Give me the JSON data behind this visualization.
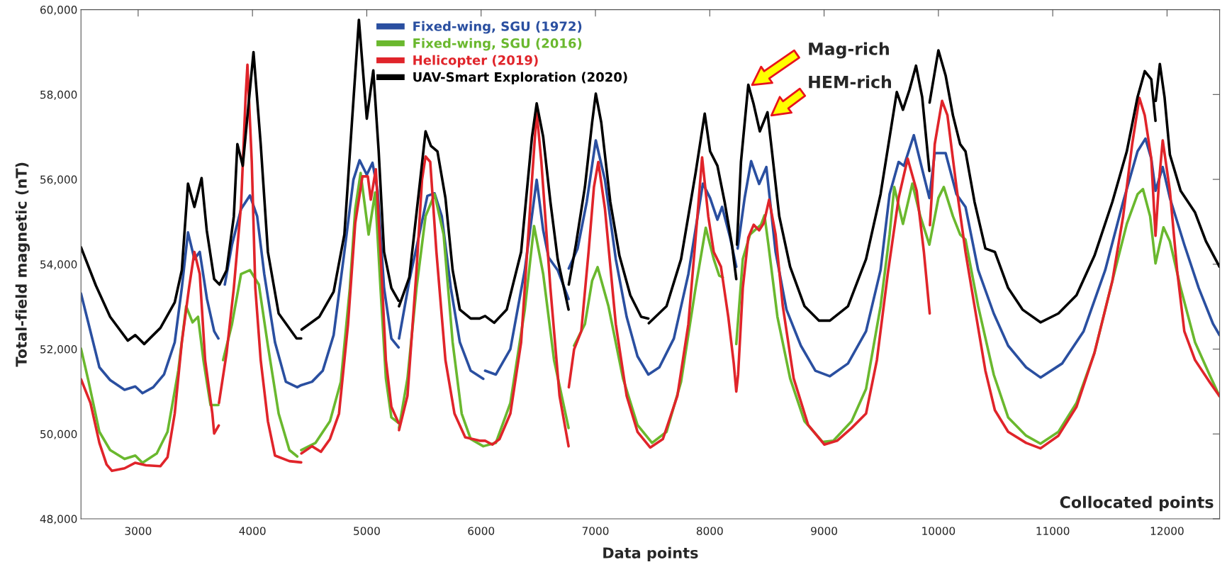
{
  "chart_data": {
    "type": "line",
    "xlabel": "Data points",
    "ylabel": "Total-field magnetic (nT)",
    "xlim": [
      2500,
      12460
    ],
    "xticks": [
      3000,
      4000,
      5000,
      6000,
      7000,
      8000,
      9000,
      10000,
      11000,
      12000
    ],
    "ylim": [
      48000,
      60000
    ],
    "yticks": [
      {
        "value": 48000,
        "label": "48,000"
      },
      {
        "value": 50000,
        "label": "50,000"
      },
      {
        "value": 52000,
        "label": "52,000"
      },
      {
        "value": 54000,
        "label": "54,000"
      },
      {
        "value": 56000,
        "label": "56,000"
      },
      {
        "value": 58000,
        "label": "58,000"
      },
      {
        "value": 60000,
        "label": "60,000"
      }
    ],
    "grid": false,
    "legend": "top",
    "marker": "none",
    "line_style": "solid",
    "annotations": [
      "Mag-rich",
      "HEM-rich",
      "Collocated points"
    ],
    "series": [
      {
        "name": "Fixed-wing, SGU (1972)",
        "color": "#2a4fa0",
        "x": [
          2500,
          2567,
          2661,
          2755,
          2881,
          2975,
          3038,
          3132,
          3226,
          3320,
          3382,
          3436,
          3492,
          3539,
          3602,
          3665,
          3702,
          3730,
          3758,
          3821,
          3900,
          3978,
          4041,
          4103,
          4197,
          4292,
          4392,
          4426,
          4521,
          4615,
          4710,
          4804,
          4883,
          4937,
          5000,
          5050,
          5095,
          5151,
          5215,
          5278,
          5280,
          5282,
          5372,
          5467,
          5530,
          5593,
          5656,
          5735,
          5814,
          5909,
          6019,
          6027,
          6035,
          6129,
          6256,
          6382,
          6486,
          6543,
          6590,
          6670,
          6765,
          6766,
          6767,
          6844,
          6924,
          7003,
          7083,
          7178,
          7273,
          7368,
          7463,
          7559,
          7686,
          7813,
          7940,
          8003,
          8067,
          8108,
          8178,
          8232,
          8238,
          8244,
          8305,
          8362,
          8432,
          8495,
          8576,
          8671,
          8797,
          8924,
          9051,
          9209,
          9367,
          9494,
          9573,
          9652,
          9699,
          9785,
          9858,
          9921,
          9968,
          10063,
          10158,
          10237,
          10348,
          10484,
          10610,
          10767,
          10893,
          11082,
          11270,
          11459,
          11616,
          11742,
          11811,
          11862,
          11899,
          11962,
          12025,
          12151,
          12277,
          12403,
          12459
        ],
        "values": [
          53310,
          52590,
          51570,
          51270,
          51040,
          51120,
          50960,
          51100,
          51400,
          52160,
          53440,
          54750,
          54120,
          54290,
          53180,
          52420,
          52250,
          null,
          53520,
          54460,
          55300,
          55620,
          55130,
          53770,
          52160,
          51230,
          51100,
          51150,
          51230,
          51490,
          52330,
          54290,
          55990,
          56450,
          56110,
          56390,
          55730,
          53440,
          52250,
          52040,
          null,
          52250,
          53610,
          54800,
          55610,
          55670,
          55130,
          53440,
          52160,
          51490,
          51300,
          null,
          51490,
          51400,
          52000,
          53860,
          55990,
          54800,
          54160,
          53860,
          53180,
          null,
          53900,
          54370,
          55470,
          56920,
          55990,
          54120,
          52760,
          51830,
          51400,
          51570,
          52250,
          53770,
          55900,
          55560,
          55050,
          55350,
          54630,
          53940,
          null,
          54370,
          55560,
          56430,
          55890,
          56290,
          54290,
          52930,
          52080,
          51490,
          51360,
          51660,
          52420,
          53860,
          55650,
          56410,
          56320,
          57040,
          56240,
          55560,
          56620,
          56620,
          55650,
          55350,
          53860,
          52840,
          52080,
          51570,
          51330,
          51660,
          52420,
          53860,
          55470,
          56660,
          56960,
          56490,
          55730,
          56290,
          55560,
          54460,
          53440,
          52590,
          52330
        ]
      },
      {
        "name": "Fixed-wing, SGU (2016)",
        "color": "#6ab82e",
        "x": [
          2500,
          2567,
          2661,
          2755,
          2881,
          2975,
          3038,
          3163,
          3257,
          3351,
          3420,
          3476,
          3524,
          3571,
          3633,
          3702,
          3720,
          3743,
          3821,
          3900,
          3978,
          4056,
          4135,
          4229,
          4323,
          4392,
          4409,
          4426,
          4552,
          4678,
          4773,
          4852,
          4899,
          4946,
          5016,
          5073,
          5120,
          5167,
          5215,
          5278,
          5280,
          5282,
          5356,
          5435,
          5514,
          5593,
          5672,
          5751,
          5830,
          5909,
          6019,
          6129,
          6256,
          6382,
          6463,
          6543,
          6638,
          6765,
          6790,
          6813,
          6908,
          6971,
          7019,
          7114,
          7241,
          7368,
          7495,
          7622,
          7749,
          7876,
          7965,
          8035,
          8083,
          8114,
          8170,
          8232,
          8289,
          8352,
          8448,
          8479,
          8513,
          8592,
          8703,
          8829,
          8987,
          9082,
          9241,
          9367,
          9494,
          9573,
          9614,
          9690,
          9772,
          9842,
          9921,
          10000,
          10047,
          10127,
          10190,
          10237,
          10348,
          10484,
          10610,
          10767,
          10893,
          11050,
          11208,
          11365,
          11522,
          11648,
          11742,
          11789,
          11852,
          11899,
          11969,
          12025,
          12119,
          12245,
          12371,
          12459
        ],
        "values": [
          52010,
          51230,
          50050,
          49620,
          49410,
          49490,
          49320,
          49540,
          50050,
          51490,
          53010,
          52630,
          52760,
          51740,
          50680,
          50680,
          null,
          51740,
          52590,
          53770,
          53860,
          53520,
          52080,
          50480,
          49620,
          49470,
          null,
          49620,
          49790,
          50300,
          51230,
          53440,
          55300,
          56150,
          54700,
          55690,
          53440,
          51310,
          50390,
          50260,
          null,
          50140,
          51310,
          53440,
          55130,
          55650,
          54700,
          52160,
          50480,
          49880,
          49710,
          49790,
          50730,
          52930,
          54900,
          53770,
          51740,
          50140,
          null,
          52080,
          52590,
          53610,
          53930,
          53010,
          51310,
          50210,
          49790,
          50050,
          51230,
          53440,
          54860,
          54120,
          53730,
          53690,
          null,
          52120,
          54120,
          54700,
          54930,
          55150,
          54460,
          52760,
          51310,
          50300,
          49810,
          49840,
          50300,
          51060,
          53010,
          54700,
          55820,
          54950,
          55900,
          55130,
          54460,
          55560,
          55820,
          55130,
          54700,
          54580,
          53010,
          51400,
          50390,
          49960,
          49770,
          50050,
          50730,
          51910,
          53610,
          54950,
          55650,
          55770,
          55130,
          54020,
          54870,
          54540,
          53440,
          52160,
          51400,
          50890
        ]
      },
      {
        "name": "Helicopter (2019)",
        "color": "#e0242a",
        "x": [
          2500,
          2583,
          2661,
          2724,
          2771,
          2881,
          2975,
          3069,
          3194,
          3257,
          3320,
          3382,
          3445,
          3492,
          3539,
          3586,
          3649,
          3665,
          3705,
          3706,
          3707,
          3774,
          3837,
          3900,
          3940,
          3956,
          3994,
          4025,
          4072,
          4135,
          4197,
          4323,
          4426,
          4427,
          4428,
          4521,
          4599,
          4678,
          4757,
          4836,
          4899,
          4962,
          5009,
          5035,
          5079,
          5120,
          5167,
          5215,
          5278,
          5280,
          5282,
          5356,
          5435,
          5483,
          5514,
          5555,
          5609,
          5688,
          5767,
          5861,
          5987,
          6035,
          6098,
          6161,
          6256,
          6350,
          6445,
          6486,
          6527,
          6606,
          6686,
          6765,
          6766,
          6767,
          6813,
          6876,
          6940,
          6987,
          7025,
          7083,
          7178,
          7273,
          7368,
          7479,
          7590,
          7717,
          7813,
          7892,
          7933,
          7987,
          8035,
          8098,
          8162,
          8210,
          8232,
          8248,
          8289,
          8337,
          8384,
          8432,
          8473,
          8519,
          8576,
          8639,
          8734,
          8861,
          9003,
          9114,
          9241,
          9367,
          9462,
          9557,
          9652,
          9731,
          9810,
          9873,
          9924,
          9925,
          9926,
          9968,
          10032,
          10079,
          10158,
          10237,
          10316,
          10411,
          10494,
          10610,
          10767,
          10893,
          11050,
          11208,
          11365,
          11522,
          11616,
          11695,
          11758,
          11805,
          11862,
          11899,
          11931,
          11962,
          12025,
          12088,
          12151,
          12245,
          12371,
          12459
        ],
        "values": [
          51290,
          50730,
          49790,
          49280,
          49130,
          49190,
          49320,
          49260,
          49240,
          49450,
          50480,
          52160,
          53440,
          54290,
          53770,
          51740,
          50480,
          50010,
          50200,
          null,
          50730,
          51910,
          53440,
          55390,
          57940,
          58700,
          56410,
          53440,
          51740,
          50300,
          49490,
          49360,
          49330,
          null,
          49540,
          49710,
          49580,
          49880,
          50480,
          52590,
          54970,
          56070,
          56070,
          55520,
          56240,
          54290,
          51740,
          50640,
          50260,
          null,
          50090,
          50900,
          53860,
          55990,
          56540,
          56410,
          54290,
          51740,
          50480,
          49920,
          49840,
          49840,
          49750,
          49880,
          50480,
          52160,
          55990,
          57600,
          56410,
          53440,
          50900,
          49710,
          null,
          51100,
          51990,
          52420,
          54290,
          55820,
          56410,
          55310,
          52590,
          50900,
          50050,
          49680,
          49880,
          50900,
          52590,
          55130,
          56520,
          55130,
          54290,
          53940,
          52760,
          51660,
          51000,
          51400,
          53440,
          54630,
          54930,
          54800,
          54970,
          55520,
          54700,
          53010,
          51310,
          50210,
          49750,
          49840,
          50140,
          50480,
          51740,
          53770,
          55560,
          56490,
          55730,
          54290,
          52840,
          null,
          54920,
          56830,
          57850,
          57510,
          55820,
          54290,
          53010,
          51490,
          50560,
          50050,
          49790,
          49660,
          49960,
          50640,
          51910,
          53610,
          55130,
          56830,
          57920,
          57510,
          56490,
          54670,
          55990,
          56920,
          55730,
          53860,
          52420,
          51740,
          51230,
          50890
        ]
      },
      {
        "name": "UAV-Smart Exploration (2020)",
        "color": "#000000",
        "x": [
          2500,
          2630,
          2755,
          2910,
          2975,
          3053,
          3195,
          3320,
          3382,
          3436,
          3492,
          3555,
          3600,
          3665,
          3712,
          3774,
          3837,
          3868,
          3915,
          4009,
          4072,
          4135,
          4229,
          4386,
          4426,
          4428,
          4430,
          4584,
          4710,
          4804,
          4868,
          4931,
          5000,
          5057,
          5104,
          5151,
          5215,
          5278,
          5280,
          5282,
          5372,
          5467,
          5514,
          5561,
          5618,
          5688,
          5751,
          5814,
          5909,
          5987,
          6035,
          6114,
          6224,
          6350,
          6445,
          6486,
          6543,
          6606,
          6670,
          6765,
          6766,
          6767,
          6829,
          6908,
          6971,
          7003,
          7051,
          7130,
          7210,
          7305,
          7400,
          7463,
          7465,
          7467,
          7622,
          7749,
          7876,
          7956,
          8003,
          8067,
          8130,
          8194,
          8232,
          8235,
          8238,
          8273,
          8337,
          8384,
          8438,
          8505,
          8544,
          8608,
          8703,
          8829,
          8956,
          9051,
          9209,
          9367,
          9494,
          9589,
          9636,
          9690,
          9747,
          9804,
          9858,
          9921,
          9922,
          9923,
          10000,
          10063,
          10127,
          10190,
          10237,
          10316,
          10411,
          10494,
          10610,
          10736,
          10893,
          11050,
          11208,
          11365,
          11522,
          11648,
          11742,
          11805,
          11862,
          11899,
          11900,
          11901,
          11937,
          11978,
          12025,
          12119,
          12245,
          12340,
          12459
        ],
        "values": [
          54400,
          53500,
          52760,
          52200,
          52330,
          52120,
          52500,
          53100,
          53860,
          55900,
          55350,
          56030,
          54800,
          53650,
          53520,
          53860,
          55130,
          56830,
          56320,
          59000,
          56830,
          54290,
          52840,
          52250,
          52250,
          null,
          52460,
          52760,
          53350,
          54700,
          57260,
          59760,
          57430,
          58570,
          56660,
          54290,
          53440,
          53140,
          null,
          53010,
          53690,
          55980,
          57130,
          56790,
          56660,
          55560,
          53860,
          52930,
          52720,
          52720,
          52780,
          52620,
          52930,
          54290,
          57000,
          57790,
          57000,
          55470,
          54120,
          52930,
          null,
          53520,
          54460,
          55820,
          57340,
          58020,
          57340,
          55470,
          54200,
          53270,
          52760,
          52720,
          null,
          52610,
          53010,
          54120,
          56150,
          57550,
          56660,
          56320,
          55470,
          54460,
          53650,
          null,
          54460,
          56410,
          58230,
          57770,
          57130,
          57580,
          56660,
          55130,
          53940,
          53010,
          52670,
          52670,
          53010,
          54120,
          55650,
          57260,
          58060,
          57640,
          58110,
          58680,
          57940,
          56200,
          null,
          57810,
          59040,
          58450,
          57510,
          56830,
          56660,
          55470,
          54370,
          54290,
          53440,
          52930,
          52630,
          52840,
          53270,
          54200,
          55470,
          56660,
          57940,
          58550,
          58360,
          57380,
          null,
          57850,
          58720,
          57940,
          56580,
          55730,
          55220,
          54540,
          53940
        ]
      }
    ]
  }
}
